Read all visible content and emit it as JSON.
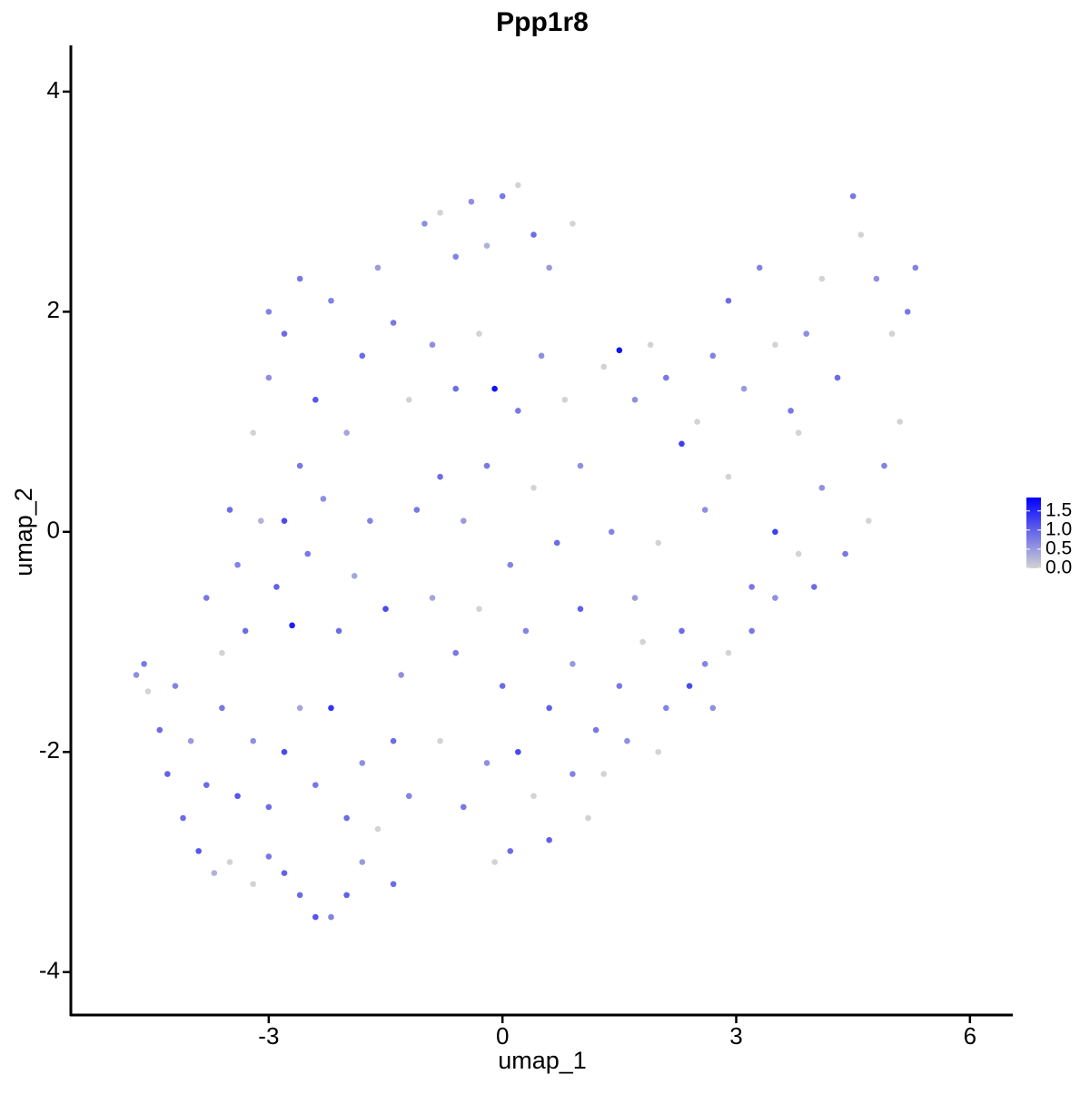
{
  "chart_data": {
    "type": "scatter",
    "title": "Ppp1r8",
    "x_label": "umap_1",
    "y_label": "umap_2",
    "xlim": [
      -5.54,
      6.55
    ],
    "ylim": [
      -4.39,
      4.42
    ],
    "xticks": [
      -3,
      0,
      3,
      6
    ],
    "yticks": [
      -4,
      -2,
      0,
      2,
      4
    ],
    "color_low": "#d3d3d3",
    "color_high": "#0000ff",
    "color_lim": [
      0,
      1.85
    ],
    "color_ticks": [
      {
        "value": 0,
        "label": "0.0"
      },
      {
        "value": 0.5,
        "label": "0.5"
      },
      {
        "value": 1,
        "label": "1.0"
      },
      {
        "value": 1.5,
        "label": "1.5"
      }
    ],
    "x": [
      -4.7,
      -4.6,
      -4.55,
      -4.4,
      -4.3,
      -4.1,
      -3.9,
      -3.7,
      -3.5,
      -3.2,
      -3.0,
      -2.8,
      -2.6,
      -2.4,
      -2.2,
      -2.0,
      -1.8,
      -1.4,
      -4.2,
      -4.0,
      -3.8,
      -3.6,
      -3.4,
      -3.2,
      -3.0,
      -2.8,
      -2.6,
      -2.4,
      -2.2,
      -2.0,
      -1.8,
      -1.6,
      -1.4,
      -1.2,
      -3.8,
      -3.6,
      -3.4,
      -3.3,
      -3.1,
      -2.9,
      -2.7,
      -2.5,
      -2.3,
      -2.1,
      -1.9,
      -1.7,
      -1.5,
      -1.3,
      -1.1,
      -3.2,
      -3.0,
      -2.8,
      -2.6,
      -2.4,
      -2.2,
      -2.0,
      -1.8,
      -1.6,
      -1.4,
      -1.2,
      -1.0,
      -3.0,
      -2.6,
      -2.8,
      -3.5,
      -0.8,
      -0.6,
      -0.4,
      -0.2,
      0.0,
      0.2,
      0.4,
      0.6,
      0.9,
      -0.9,
      -0.6,
      -0.3,
      -0.1,
      0.2,
      0.5,
      0.8,
      -0.8,
      -0.5,
      -0.2,
      0.1,
      0.4,
      0.7,
      1.0,
      -0.9,
      -0.6,
      -0.3,
      0.0,
      0.3,
      0.6,
      0.9,
      -0.8,
      -0.5,
      -0.2,
      0.1,
      0.4,
      0.6,
      0.9,
      1.1,
      -0.1,
      0.2,
      1.2,
      1.0,
      1.3,
      1.5,
      1.7,
      1.9,
      2.1,
      2.3,
      2.5,
      2.7,
      2.9,
      3.1,
      3.3,
      3.5,
      3.7,
      3.9,
      4.1,
      4.3,
      4.5,
      4.6,
      4.8,
      5.0,
      5.2,
      5.3,
      5.1,
      4.9,
      4.7,
      4.4,
      4.1,
      3.8,
      3.5,
      3.2,
      2.9,
      2.6,
      1.4,
      1.7,
      2.0,
      2.3,
      2.6,
      2.9,
      3.2,
      3.5,
      3.8,
      4.0,
      1.5,
      1.8,
      2.1,
      2.4,
      2.7,
      1.3,
      1.6,
      2.0
    ],
    "values": [
      -1.3,
      -1.2,
      -1.45,
      -1.8,
      -2.2,
      -2.6,
      -2.9,
      -3.1,
      -3.0,
      -3.2,
      -2.95,
      -3.1,
      -3.3,
      -3.5,
      -3.5,
      -3.3,
      -3.0,
      -3.2,
      -1.4,
      -1.9,
      -2.3,
      -1.6,
      -2.4,
      -1.9,
      -2.5,
      -2.0,
      -1.6,
      -2.3,
      -1.6,
      -2.6,
      -2.1,
      -2.7,
      -1.9,
      -2.4,
      -0.6,
      -1.1,
      -0.3,
      -0.9,
      0.1,
      -0.5,
      -0.85,
      -0.2,
      0.3,
      -0.9,
      -0.4,
      0.1,
      -0.7,
      -1.3,
      0.2,
      0.9,
      1.4,
      1.8,
      0.6,
      1.2,
      2.1,
      0.9,
      1.6,
      2.4,
      1.9,
      1.2,
      2.8,
      2.0,
      2.3,
      0.1,
      0.2,
      2.9,
      2.5,
      3.0,
      2.6,
      3.05,
      3.15,
      2.7,
      2.4,
      2.8,
      1.7,
      1.3,
      1.8,
      1.3,
      1.1,
      1.6,
      1.2,
      0.5,
      0.1,
      0.6,
      -0.3,
      0.4,
      -0.1,
      0.6,
      -0.6,
      -1.1,
      -0.7,
      -1.4,
      -0.9,
      -1.6,
      -1.2,
      -1.9,
      -2.5,
      -2.1,
      -2.9,
      -2.4,
      -2.8,
      -2.2,
      -2.6,
      -3.0,
      -2.0,
      -1.8,
      -0.7,
      1.5,
      1.65,
      1.2,
      1.7,
      1.4,
      0.8,
      1.0,
      1.6,
      2.1,
      1.3,
      2.4,
      1.7,
      1.1,
      1.8,
      2.3,
      1.4,
      3.05,
      2.7,
      2.3,
      1.8,
      2.0,
      2.4,
      1.0,
      0.6,
      0.1,
      -0.2,
      0.4,
      0.9,
      0.0,
      -0.5,
      0.5,
      0.2,
      0.0,
      -0.6,
      -0.1,
      -0.9,
      -1.2,
      -1.1,
      -0.9,
      -0.6,
      -0.2,
      -0.5,
      -1.4,
      -1.0,
      -1.6,
      -1.4,
      -1.6,
      -2.2,
      -1.9,
      -2.0
    ],
    "point_values": [
      0.6,
      0.8,
      0,
      0.9,
      1.0,
      0.9,
      1.1,
      0.3,
      0,
      0,
      0.8,
      1.0,
      0.9,
      1.1,
      0.7,
      1.0,
      0.5,
      0.9,
      0.7,
      0.5,
      0.9,
      0.8,
      1.1,
      0.6,
      0.9,
      1.2,
      0.4,
      0.8,
      1.4,
      0.9,
      0.6,
      0,
      0.9,
      0.7,
      0.8,
      0,
      0.7,
      0.9,
      0.3,
      1.0,
      1.6,
      0.8,
      0.6,
      0.9,
      0.4,
      0.7,
      1.2,
      0.6,
      0.8,
      0,
      0.6,
      0.9,
      0.8,
      1.1,
      0.7,
      0.4,
      0.9,
      0.5,
      0.8,
      0,
      0.6,
      0.7,
      0.8,
      1.2,
      0.9,
      0,
      0.7,
      0.6,
      0.3,
      0.8,
      0,
      0.9,
      0.5,
      0,
      0.6,
      0.9,
      0,
      1.7,
      0.8,
      0.6,
      0,
      0.9,
      0.5,
      0.8,
      0.7,
      0,
      0.9,
      0.6,
      0.4,
      0.8,
      0,
      0.9,
      0.7,
      1.0,
      0.5,
      0,
      0.8,
      0.6,
      0.9,
      0,
      1.0,
      0.7,
      0,
      0,
      1.2,
      0.8,
      1.0,
      0,
      1.7,
      0.6,
      0,
      0.8,
      1.3,
      0,
      0.7,
      0.9,
      0.5,
      0.7,
      0,
      0.8,
      0.6,
      0,
      0.9,
      0.8,
      0,
      0.6,
      0,
      0.8,
      0.7,
      0,
      0.7,
      0,
      0.8,
      0.6,
      0,
      1.3,
      0.8,
      0,
      0.6,
      0.7,
      0.5,
      0,
      0.9,
      0.7,
      0,
      0.8,
      0.6,
      0,
      0.9,
      0.8,
      0,
      0.7,
      1.2,
      0.6,
      0,
      0.6,
      0
    ]
  }
}
